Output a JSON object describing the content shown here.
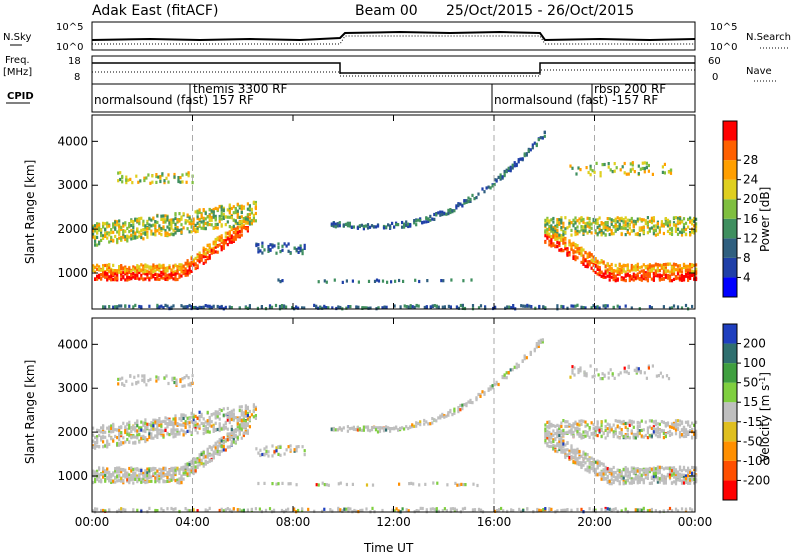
{
  "header": {
    "station": "Adak East (fitACF)",
    "beam": "Beam 00",
    "date_range": "25/Oct/2015 - 26/Oct/2015"
  },
  "top_panel_labels": {
    "nsky": "N.Sky",
    "nsearch": "N.Search",
    "freq": "Freq.",
    "freq_unit": "[MHz]",
    "nave": "Nave",
    "cpid": "CPID",
    "left_log_top": "10^5",
    "left_log_bottom": "10^0",
    "right_log_top": "10^5",
    "right_log_bottom": "10^0",
    "freq_top": "18",
    "freq_bottom": "8",
    "nave_top": "60",
    "nave_bottom": "0"
  },
  "cpid_segments": [
    {
      "label": "normalsound (fast) 157 RF",
      "start_hour": 0
    },
    {
      "label": "themis 3300 RF",
      "start_hour": 4
    },
    {
      "label": "normalsound (fast) -157 RF",
      "start_hour": 16
    },
    {
      "label": "rbsp 200 RF",
      "start_hour": 20
    }
  ],
  "colors": {
    "power": [
      "#0000ff",
      "#1f3fa8",
      "#2f5f7f",
      "#3f8f5f",
      "#7fbf3f",
      "#dfcf1f",
      "#ff9f00",
      "#ff6000",
      "#ff0000"
    ],
    "velocity": [
      "#1f3fbf",
      "#2f6f6f",
      "#3f9f3f",
      "#7fcf3f",
      "#bfbfbf",
      "#dfbf1f",
      "#ff8f00",
      "#ff4f00",
      "#ff0000"
    ]
  },
  "chart_data": [
    {
      "type": "heatmap",
      "title": "",
      "xlabel": "Time UT",
      "ylabel": "Slant Range [km]",
      "xlim": [
        0,
        24
      ],
      "ylim": [
        180,
        4600
      ],
      "x_ticks": [
        "00:00",
        "04:00",
        "08:00",
        "12:00",
        "16:00",
        "20:00",
        "00:00"
      ],
      "y_ticks": [
        1000,
        2000,
        3000,
        4000
      ],
      "colorbar": {
        "label": "Power [dB]",
        "ticks": [
          4,
          8,
          12,
          16,
          20,
          24,
          28
        ]
      },
      "dashed_vlines_hours": [
        4,
        16,
        20
      ]
    },
    {
      "type": "heatmap",
      "title": "",
      "xlabel": "Time UT",
      "ylabel": "Slant Range [km]",
      "xlim": [
        0,
        24
      ],
      "ylim": [
        180,
        4600
      ],
      "x_ticks": [
        "00:00",
        "04:00",
        "08:00",
        "12:00",
        "16:00",
        "20:00",
        "00:00"
      ],
      "y_ticks": [
        1000,
        2000,
        3000,
        4000
      ],
      "colorbar": {
        "label": "Velocity [m s-1]",
        "ticks": [
          200,
          100,
          50,
          15,
          -15,
          -50,
          -100,
          -200
        ]
      },
      "dashed_vlines_hours": [
        4,
        16,
        20
      ]
    }
  ]
}
